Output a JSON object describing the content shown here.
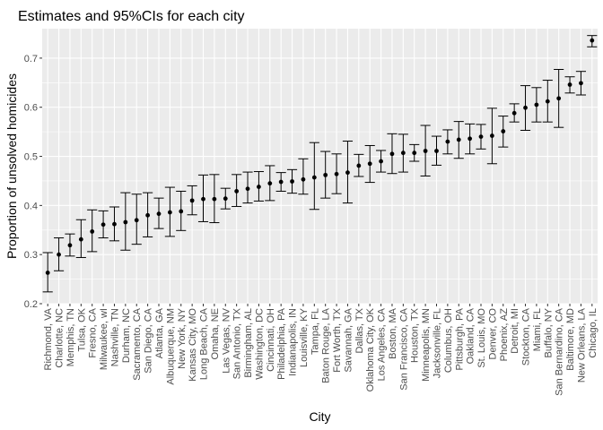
{
  "chart_data": {
    "type": "scatter",
    "title": "Estimates and 95%CIs for each city",
    "xlabel": "City",
    "ylabel": "Proportion of unsolved homicides",
    "ylim": [
      0.2,
      0.76
    ],
    "yticks": [
      0.2,
      0.3,
      0.4,
      0.5,
      0.6,
      0.7
    ],
    "ytick_labels": [
      "0.2",
      "0.3",
      "0.4",
      "0.5",
      "0.6",
      "0.7"
    ],
    "grid": true,
    "panel_background": "#ebebeb",
    "point_color": "#000000",
    "categories": [
      "Richmond, VA",
      "Charlotte, NC",
      "Memphis, TN",
      "Tulsa, OK",
      "Fresno, CA",
      "Milwaukee, wI",
      "Nashville, TN",
      "Durham, NC",
      "Sacramento, CA",
      "San Diego, CA",
      "Atlanta, GA",
      "Albuquerque, NM",
      "New York, NY",
      "Kansas City, MO",
      "Long Beach, CA",
      "Omaha, NE",
      "Las Vegas, NV",
      "San Antonio, TX",
      "Birmingham, AL",
      "Washington, DC",
      "Cincinnati, OH",
      "Philadelphia, PA",
      "Indianapolis, IN",
      "Louisville, KY",
      "Tampa, FL",
      "Baton Rouge, LA",
      "Fort Worth, TX",
      "Savannah, GA",
      "Dallas, TX",
      "Oklahoma City, OK",
      "Los Angeles, CA",
      "Boston, MA",
      "San Francisco, CA",
      "Houston, TX",
      "Minneapolis, MN",
      "Jacksonville, FL",
      "Columbus, OH",
      "Pittsburgh, PA",
      "Oakland, CA",
      "St. Louis, MO",
      "Denver, CO",
      "Phoenix, AZ",
      "Detroit, MI",
      "Stockton, CA",
      "Miami, FL",
      "Buffalo, NY",
      "San Bernardino, CA",
      "Baltimore, MD",
      "New Orleans, LA",
      "Chicago, IL"
    ],
    "series": [
      {
        "estimate": [
          0.263,
          0.3,
          0.319,
          0.331,
          0.347,
          0.361,
          0.362,
          0.366,
          0.37,
          0.38,
          0.383,
          0.386,
          0.388,
          0.41,
          0.413,
          0.413,
          0.414,
          0.429,
          0.434,
          0.438,
          0.445,
          0.448,
          0.449,
          0.453,
          0.457,
          0.462,
          0.464,
          0.467,
          0.481,
          0.485,
          0.49,
          0.505,
          0.507,
          0.507,
          0.511,
          0.511,
          0.53,
          0.534,
          0.536,
          0.54,
          0.542,
          0.551,
          0.588,
          0.599,
          0.605,
          0.612,
          0.618,
          0.646,
          0.649,
          0.736
        ],
        "ci_low": [
          0.224,
          0.267,
          0.297,
          0.294,
          0.306,
          0.334,
          0.328,
          0.309,
          0.321,
          0.336,
          0.353,
          0.337,
          0.349,
          0.381,
          0.367,
          0.365,
          0.393,
          0.398,
          0.405,
          0.409,
          0.41,
          0.429,
          0.425,
          0.423,
          0.392,
          0.415,
          0.424,
          0.405,
          0.459,
          0.447,
          0.468,
          0.465,
          0.468,
          0.49,
          0.46,
          0.482,
          0.505,
          0.496,
          0.505,
          0.515,
          0.485,
          0.519,
          0.57,
          0.553,
          0.57,
          0.57,
          0.559,
          0.629,
          0.625,
          0.723
        ],
        "ci_high": [
          0.304,
          0.334,
          0.342,
          0.371,
          0.391,
          0.389,
          0.397,
          0.426,
          0.423,
          0.426,
          0.415,
          0.437,
          0.429,
          0.44,
          0.462,
          0.463,
          0.435,
          0.463,
          0.468,
          0.469,
          0.481,
          0.467,
          0.473,
          0.495,
          0.528,
          0.51,
          0.505,
          0.531,
          0.504,
          0.522,
          0.512,
          0.546,
          0.545,
          0.524,
          0.563,
          0.541,
          0.554,
          0.571,
          0.566,
          0.565,
          0.598,
          0.582,
          0.607,
          0.644,
          0.64,
          0.655,
          0.677,
          0.662,
          0.673,
          0.746
        ]
      }
    ]
  }
}
